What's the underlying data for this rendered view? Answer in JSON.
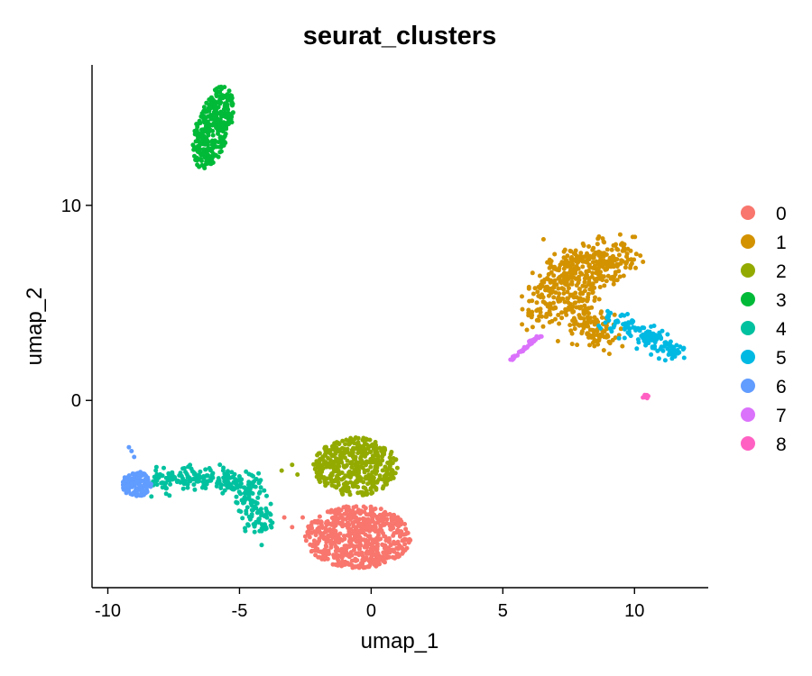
{
  "chart_data": {
    "type": "scatter",
    "title": "seurat_clusters",
    "xlabel": "umap_1",
    "ylabel": "umap_2",
    "xlim": [
      -10.6,
      12.8
    ],
    "ylim": [
      -9.6,
      17.2
    ],
    "xticks": [
      -10,
      -5,
      0,
      5,
      10
    ],
    "yticks": [
      0,
      10
    ],
    "grid": false,
    "legend_position": "right",
    "legend": [
      "0",
      "1",
      "2",
      "3",
      "4",
      "5",
      "6",
      "7",
      "8"
    ],
    "colors": [
      "#F8766D",
      "#D39200",
      "#93AA00",
      "#00BA38",
      "#00C19F",
      "#00B9E3",
      "#619CFF",
      "#DB72FB",
      "#FF61C3"
    ],
    "clusters": [
      {
        "name": "0",
        "shape": "ellipse",
        "center": [
          -0.5,
          -7.0
        ],
        "spread": [
          2.0,
          1.6
        ],
        "n": 620,
        "outliers": [
          [
            -3.3,
            -6.0
          ],
          [
            -3.0,
            -6.5
          ],
          [
            -2.6,
            -6.0
          ]
        ]
      },
      {
        "name": "1",
        "shape": "polyline",
        "path": [
          [
            6.5,
            4.2
          ],
          [
            6.8,
            5.8
          ],
          [
            7.5,
            7.0
          ],
          [
            8.5,
            7.5
          ],
          [
            9.5,
            7.6
          ],
          [
            9.0,
            7.1
          ],
          [
            8.2,
            6.3
          ],
          [
            7.9,
            5.3
          ],
          [
            8.0,
            4.2
          ],
          [
            8.5,
            3.3
          ],
          [
            9.3,
            3.2
          ]
        ],
        "width": 1.2,
        "n": 560
      },
      {
        "name": "2",
        "shape": "ellipse",
        "center": [
          -0.6,
          -3.4
        ],
        "spread": [
          1.6,
          1.5
        ],
        "n": 440,
        "outliers": [
          [
            -3.4,
            -3.6
          ],
          [
            -3.0,
            -3.3
          ],
          [
            -2.8,
            -3.8
          ]
        ]
      },
      {
        "name": "3",
        "shape": "ellipse",
        "center": [
          -6.0,
          14.0
        ],
        "spread": [
          0.7,
          2.1
        ],
        "tilt": 0.25,
        "n": 330
      },
      {
        "name": "4",
        "shape": "polyline",
        "path": [
          [
            -8.2,
            -4.0
          ],
          [
            -7.5,
            -4.2
          ],
          [
            -6.5,
            -4.0
          ],
          [
            -5.5,
            -3.9
          ],
          [
            -4.8,
            -4.3
          ],
          [
            -4.5,
            -5.2
          ],
          [
            -4.3,
            -6.0
          ],
          [
            -4.0,
            -6.6
          ]
        ],
        "width": 0.9,
        "n": 300
      },
      {
        "name": "5",
        "shape": "polyline",
        "path": [
          [
            9.0,
            4.3
          ],
          [
            9.8,
            3.8
          ],
          [
            10.5,
            3.3
          ],
          [
            11.2,
            2.8
          ],
          [
            11.7,
            2.4
          ]
        ],
        "width": 0.8,
        "n": 140
      },
      {
        "name": "6",
        "shape": "ellipse",
        "center": [
          -8.9,
          -4.3
        ],
        "spread": [
          0.55,
          0.65
        ],
        "n": 130,
        "outliers": [
          [
            -9.2,
            -2.4
          ],
          [
            -9.1,
            -2.6
          ],
          [
            -9.0,
            -2.9
          ]
        ]
      },
      {
        "name": "7",
        "shape": "polyline",
        "path": [
          [
            5.3,
            2.1
          ],
          [
            6.5,
            3.4
          ]
        ],
        "width": 0.12,
        "n": 40
      },
      {
        "name": "8",
        "shape": "ellipse",
        "center": [
          10.4,
          0.2
        ],
        "spread": [
          0.18,
          0.1
        ],
        "n": 10
      }
    ]
  }
}
